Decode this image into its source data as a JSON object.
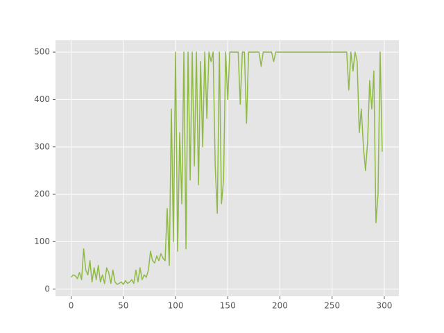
{
  "chart_data": {
    "type": "line",
    "x": [
      0,
      2,
      4,
      6,
      8,
      10,
      12,
      14,
      16,
      18,
      20,
      22,
      24,
      26,
      28,
      30,
      32,
      34,
      36,
      38,
      40,
      42,
      44,
      46,
      48,
      50,
      52,
      54,
      56,
      58,
      60,
      62,
      64,
      66,
      68,
      70,
      72,
      74,
      76,
      78,
      80,
      82,
      84,
      86,
      88,
      90,
      92,
      94,
      96,
      98,
      100,
      102,
      104,
      106,
      108,
      110,
      112,
      114,
      116,
      118,
      120,
      122,
      124,
      126,
      128,
      130,
      132,
      134,
      136,
      138,
      140,
      142,
      144,
      146,
      148,
      150,
      152,
      154,
      156,
      158,
      160,
      162,
      164,
      166,
      168,
      170,
      172,
      174,
      176,
      178,
      180,
      182,
      184,
      186,
      188,
      190,
      192,
      194,
      196,
      198,
      200,
      202,
      204,
      206,
      208,
      210,
      212,
      214,
      216,
      218,
      220,
      222,
      224,
      226,
      228,
      230,
      232,
      234,
      236,
      238,
      240,
      242,
      244,
      246,
      248,
      250,
      252,
      254,
      256,
      258,
      260,
      262,
      264,
      266,
      268,
      270,
      272,
      274,
      276,
      278,
      280,
      282,
      284,
      286,
      288,
      290,
      292,
      294,
      296,
      298
    ],
    "series": [
      {
        "color": "#8eba42",
        "values": [
          25,
          30,
          28,
          22,
          35,
          20,
          85,
          40,
          30,
          60,
          15,
          45,
          20,
          50,
          15,
          30,
          12,
          45,
          35,
          12,
          40,
          15,
          10,
          12,
          15,
          10,
          18,
          12,
          15,
          20,
          12,
          40,
          15,
          45,
          20,
          30,
          25,
          40,
          80,
          60,
          55,
          70,
          60,
          75,
          65,
          60,
          170,
          50,
          380,
          100,
          500,
          80,
          330,
          180,
          500,
          85,
          500,
          230,
          500,
          260,
          500,
          220,
          480,
          300,
          500,
          360,
          500,
          480,
          500,
          260,
          160,
          500,
          180,
          230,
          500,
          400,
          500,
          500,
          500,
          500,
          500,
          390,
          500,
          500,
          350,
          500,
          500,
          500,
          500,
          500,
          500,
          470,
          500,
          500,
          500,
          500,
          500,
          480,
          500,
          500,
          500,
          500,
          500,
          500,
          500,
          500,
          500,
          500,
          500,
          500,
          500,
          500,
          500,
          500,
          500,
          500,
          500,
          500,
          500,
          500,
          500,
          500,
          500,
          500,
          500,
          500,
          500,
          500,
          500,
          500,
          500,
          500,
          500,
          420,
          500,
          460,
          500,
          480,
          330,
          380,
          300,
          250,
          310,
          440,
          380,
          460,
          140,
          200,
          500,
          290
        ]
      }
    ],
    "xlim": [
      -15,
      314
    ],
    "ylim": [
      -15,
      525
    ],
    "xticks": [
      0,
      50,
      100,
      150,
      200,
      250,
      300
    ],
    "yticks": [
      0,
      100,
      200,
      300,
      400,
      500
    ],
    "grid": true
  }
}
